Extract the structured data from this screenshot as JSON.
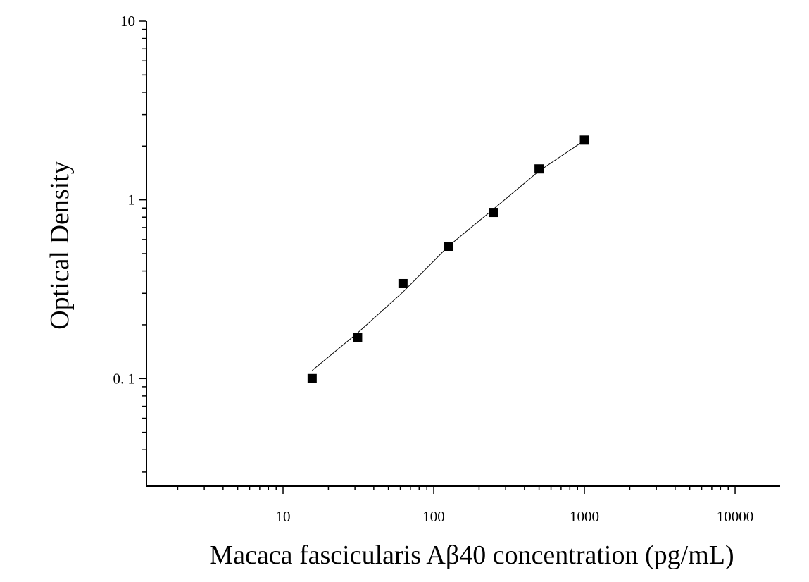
{
  "chart_data": {
    "type": "scatter",
    "x_label": "Macaca fascicularis Aβ40 concentration (pg/mL)",
    "y_label": "Optical Density",
    "x_log": true,
    "y_log": true,
    "xlim": [
      1.24,
      19900
    ],
    "ylim": [
      0.025,
      10
    ],
    "xticks": [
      10,
      100,
      1000,
      10000
    ],
    "yticks": [
      {
        "value": 0.1,
        "label": "0. 1"
      },
      1,
      10
    ],
    "series": [
      {
        "color": "#000000",
        "x": [
          15.6,
          31.25,
          62.5,
          125,
          250,
          500,
          1000
        ],
        "values": [
          0.1,
          0.169,
          0.34,
          0.55,
          0.85,
          1.49,
          2.16
        ]
      }
    ],
    "curve": {
      "color": "#000000",
      "x": [
        15.6,
        31.25,
        62.5,
        125,
        250,
        500,
        1000
      ],
      "values": [
        0.111,
        0.18,
        0.305,
        0.55,
        0.89,
        1.45,
        2.15
      ]
    }
  }
}
